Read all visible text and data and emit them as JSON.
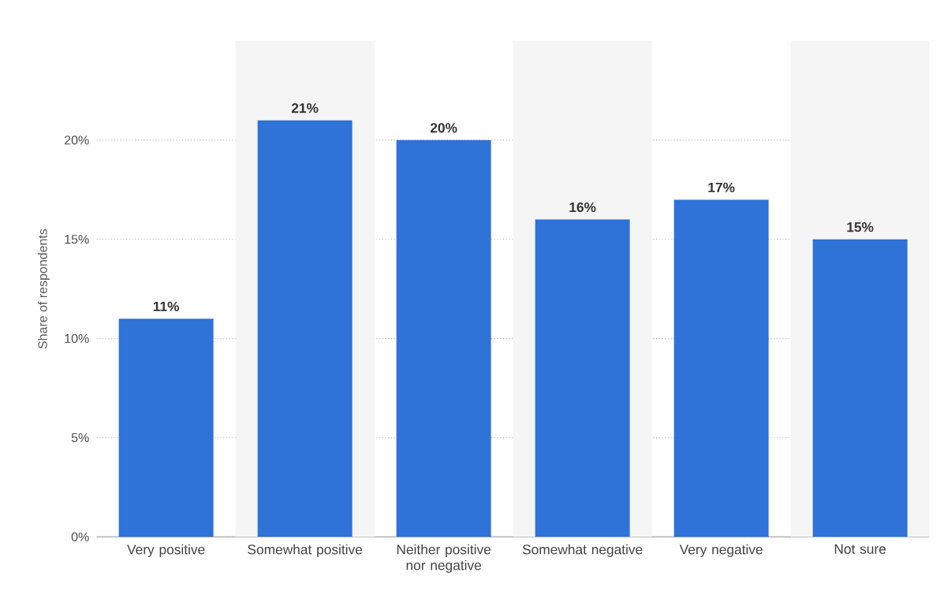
{
  "chart_data": {
    "type": "bar",
    "ylabel": "Share of respondents",
    "categories": [
      "Very positive",
      "Somewhat positive",
      "Neither positive nor negative",
      "Somewhat negative",
      "Very negative",
      "Not sure"
    ],
    "values": [
      11,
      21,
      20,
      16,
      17,
      15
    ],
    "value_labels": [
      "11%",
      "21%",
      "20%",
      "16%",
      "17%",
      "15%"
    ],
    "color": "#2f72d8",
    "ylim": [
      0,
      25
    ],
    "yticks": [
      {
        "value": 0,
        "label": "0%"
      },
      {
        "value": 5,
        "label": "5%"
      },
      {
        "value": 10,
        "label": "10%"
      },
      {
        "value": 15,
        "label": "15%"
      },
      {
        "value": 20,
        "label": "20%"
      }
    ],
    "grid": "y"
  }
}
